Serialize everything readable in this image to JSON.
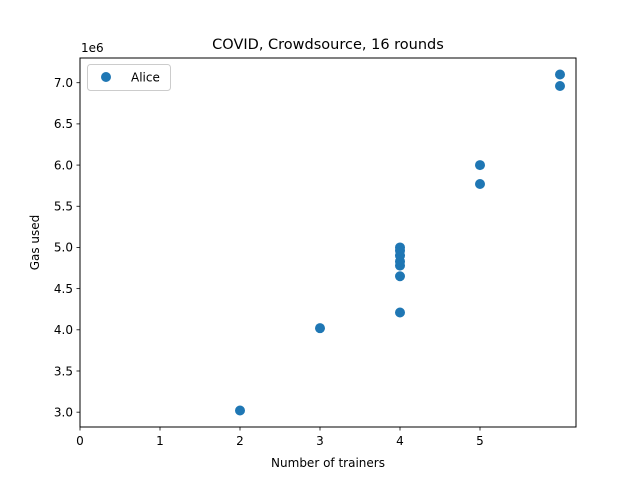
{
  "chart_data": {
    "type": "scatter",
    "title": "COVID, Crowdsource, 16 rounds",
    "xlabel": "Number of trainers",
    "ylabel": "Gas used",
    "y_offset_label": "1e6",
    "xlim": [
      0,
      6.2
    ],
    "ylim": [
      2.82,
      7.3
    ],
    "x_ticks": [
      0,
      1,
      2,
      3,
      4,
      5
    ],
    "x_tick_labels": [
      "0",
      "1",
      "2",
      "3",
      "4",
      "5"
    ],
    "y_ticks": [
      3.0,
      3.5,
      4.0,
      4.5,
      5.0,
      5.5,
      6.0,
      6.5,
      7.0
    ],
    "y_tick_labels": [
      "3.0",
      "3.5",
      "4.0",
      "4.5",
      "5.0",
      "5.5",
      "6.0",
      "6.5",
      "7.0"
    ],
    "grid": false,
    "legend_position": "upper-left",
    "series": [
      {
        "name": "Alice",
        "color": "#1f77b4",
        "points": [
          [
            2,
            3.02
          ],
          [
            3,
            4.02
          ],
          [
            4,
            4.21
          ],
          [
            4,
            4.65
          ],
          [
            4,
            4.78
          ],
          [
            4,
            4.83
          ],
          [
            4,
            4.9
          ],
          [
            4,
            4.96
          ],
          [
            4,
            5.0
          ],
          [
            5,
            5.77
          ],
          [
            5,
            6.0
          ],
          [
            6,
            6.96
          ],
          [
            6,
            7.1
          ]
        ]
      }
    ]
  }
}
